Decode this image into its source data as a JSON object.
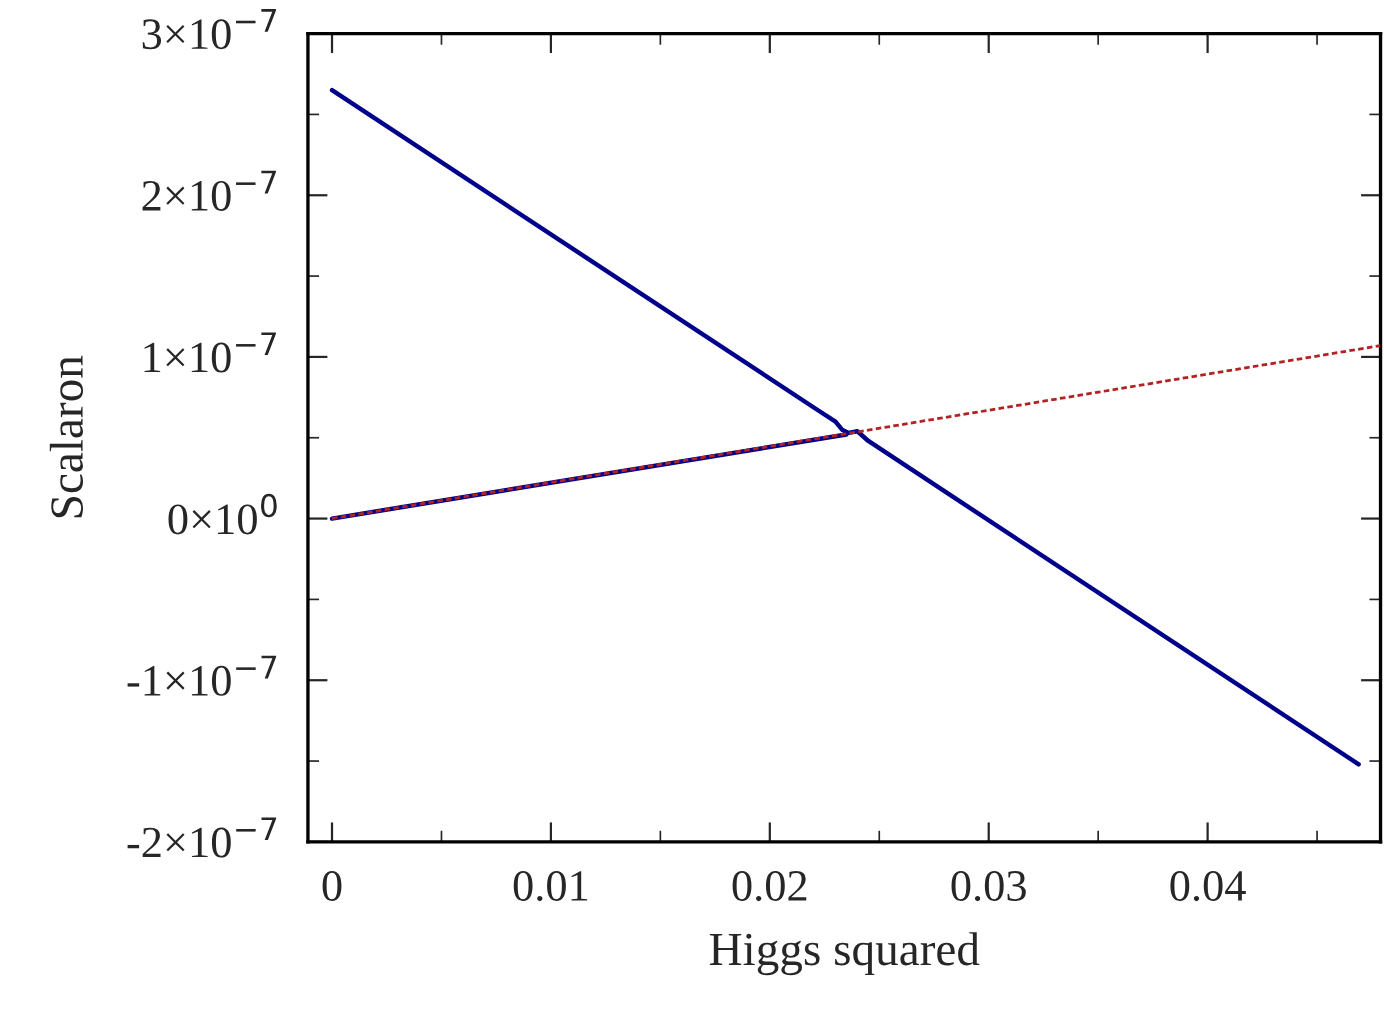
{
  "chart_data": {
    "type": "line",
    "xlabel": "Higgs squared",
    "ylabel": "Scalaron",
    "xlim": [
      -0.0011,
      0.0479
    ],
    "ylim": [
      -2e-07,
      3e-07
    ],
    "xticks": [
      0,
      {
        "value": 0.005,
        "label": null
      },
      0.01,
      {
        "value": 0.015,
        "label": null
      },
      0.02,
      {
        "value": 0.025,
        "label": null
      },
      0.03,
      {
        "value": 0.035,
        "label": null
      },
      0.04,
      {
        "value": 0.045,
        "label": null
      }
    ],
    "yticks": [
      {
        "value": -2e-07,
        "label": "-2×10$^{−7}$"
      },
      {
        "value": -1.5e-07,
        "label": null
      },
      {
        "value": -1e-07,
        "label": "-1×10$^{−7}$"
      },
      {
        "value": -5e-08,
        "label": null
      },
      {
        "value": 0,
        "label": "0×10$^{0}$"
      },
      {
        "value": 5e-08,
        "label": null
      },
      {
        "value": 1e-07,
        "label": "1×10$^{−7}$"
      },
      {
        "value": 1.5e-07,
        "label": null
      },
      {
        "value": 2e-07,
        "label": "2×10$^{−7}$"
      },
      {
        "value": 2.5e-07,
        "label": null
      },
      {
        "value": 3e-07,
        "label": "3×10$^{−7}$"
      }
    ],
    "grid": false,
    "legend": false,
    "series": [
      {
        "color": "#b22222",
        "line_style": "dashed",
        "x": [
          0,
          0.0479
        ],
        "values": [
          0,
          1.07e-07
        ]
      },
      {
        "color": "#00008b",
        "line_style": "solid",
        "x": [
          0,
          0.0235
        ],
        "values": [
          0,
          5.2e-08
        ]
      },
      {
        "color": "#00008b",
        "line_style": "solid",
        "x": [
          0,
          0.0222,
          0.023,
          0.0233,
          0.0236,
          0.024,
          0.0245,
          0.0469
        ],
        "values": [
          2.65e-07,
          6.7e-08,
          6e-08,
          5.5e-08,
          5.3e-08,
          5.4e-08,
          4.8e-08,
          -1.52e-07
        ]
      }
    ]
  }
}
